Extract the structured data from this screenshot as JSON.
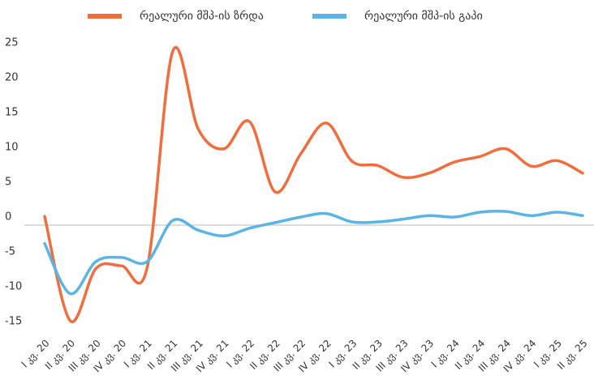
{
  "chart_data": {
    "type": "line",
    "categories": [
      "I კვ. 20",
      "II კვ. 20",
      "III კვ. 20",
      "IV კვ. 20",
      "I კვ. 21",
      "II კვ. 21",
      "III კვ. 21",
      "IV კვ. 21",
      "I კვ. 22",
      "II კვ. 22",
      "III კვ. 22",
      "IV კვ. 22",
      "I კვ. 23",
      "II კვ. 23",
      "III კვ. 23",
      "IV კვ. 23",
      "I კვ. 24",
      "II კვ. 24",
      "III კვ. 24",
      "IV კვ. 24",
      "I კვ. 25",
      "II კვ. 25"
    ],
    "series": [
      {
        "name": "რეალური მშპ-ის ზრდა",
        "color": "#f26d3d",
        "values": [
          0.1,
          -14.9,
          -7.4,
          -7.0,
          -7.3,
          23.8,
          12.6,
          9.8,
          13.7,
          3.6,
          9.1,
          13.5,
          8.0,
          7.4,
          5.7,
          6.3,
          7.9,
          8.7,
          9.8,
          7.3,
          8.1,
          6.3
        ]
      },
      {
        "name": "რეალური მშპ-ის გაპი",
        "color": "#5ab4e5",
        "values": [
          -3.8,
          -11.0,
          -6.4,
          -5.8,
          -6.4,
          -0.5,
          -1.9,
          -2.7,
          -1.6,
          -0.8,
          0,
          0.5,
          -0.7,
          -0.7,
          -0.3,
          0.2,
          0,
          0.7,
          0.8,
          0.2,
          0.7,
          0.2
        ]
      }
    ],
    "ylim": [
      -15,
      25
    ],
    "yticks": [
      -15,
      -10,
      -5,
      0,
      5,
      10,
      15,
      20,
      25
    ],
    "legend": "top"
  }
}
